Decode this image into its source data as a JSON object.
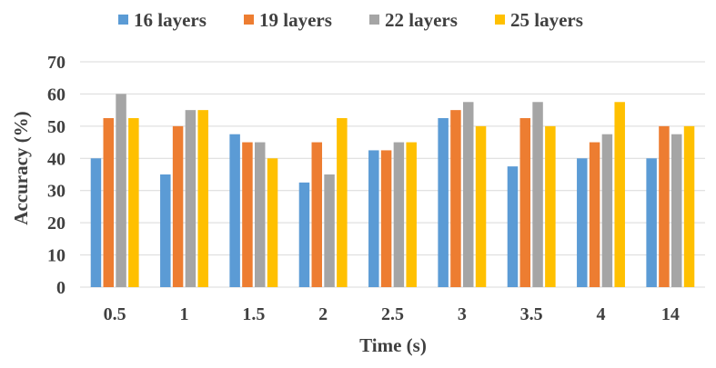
{
  "chart_data": {
    "type": "bar",
    "title": "",
    "xlabel": "Time (s)",
    "ylabel": "Accuracy (%)",
    "ylim": [
      0,
      70
    ],
    "yticks": [
      "0",
      "10",
      "20",
      "30",
      "40",
      "50",
      "60",
      "70"
    ],
    "grid": true,
    "legend_position": "top",
    "categories": [
      "0.5",
      "1",
      "1.5",
      "2",
      "2.5",
      "3",
      "3.5",
      "4",
      "14"
    ],
    "series": [
      {
        "name": "16 layers",
        "color": "#5b9bd5",
        "values": [
          40,
          35,
          47.5,
          32.5,
          42.5,
          52.5,
          37.5,
          40,
          40
        ]
      },
      {
        "name": "19 layers",
        "color": "#ed7d31",
        "values": [
          52.5,
          50,
          45,
          45,
          42.5,
          55,
          52.5,
          45,
          50
        ]
      },
      {
        "name": "22 layers",
        "color": "#a5a5a5",
        "values": [
          60,
          55,
          45,
          35,
          45,
          57.5,
          57.5,
          47.5,
          47.5
        ]
      },
      {
        "name": "25 layers",
        "color": "#ffc000",
        "values": [
          52.5,
          55,
          40,
          52.5,
          45,
          50,
          50,
          57.5,
          50
        ]
      }
    ]
  }
}
